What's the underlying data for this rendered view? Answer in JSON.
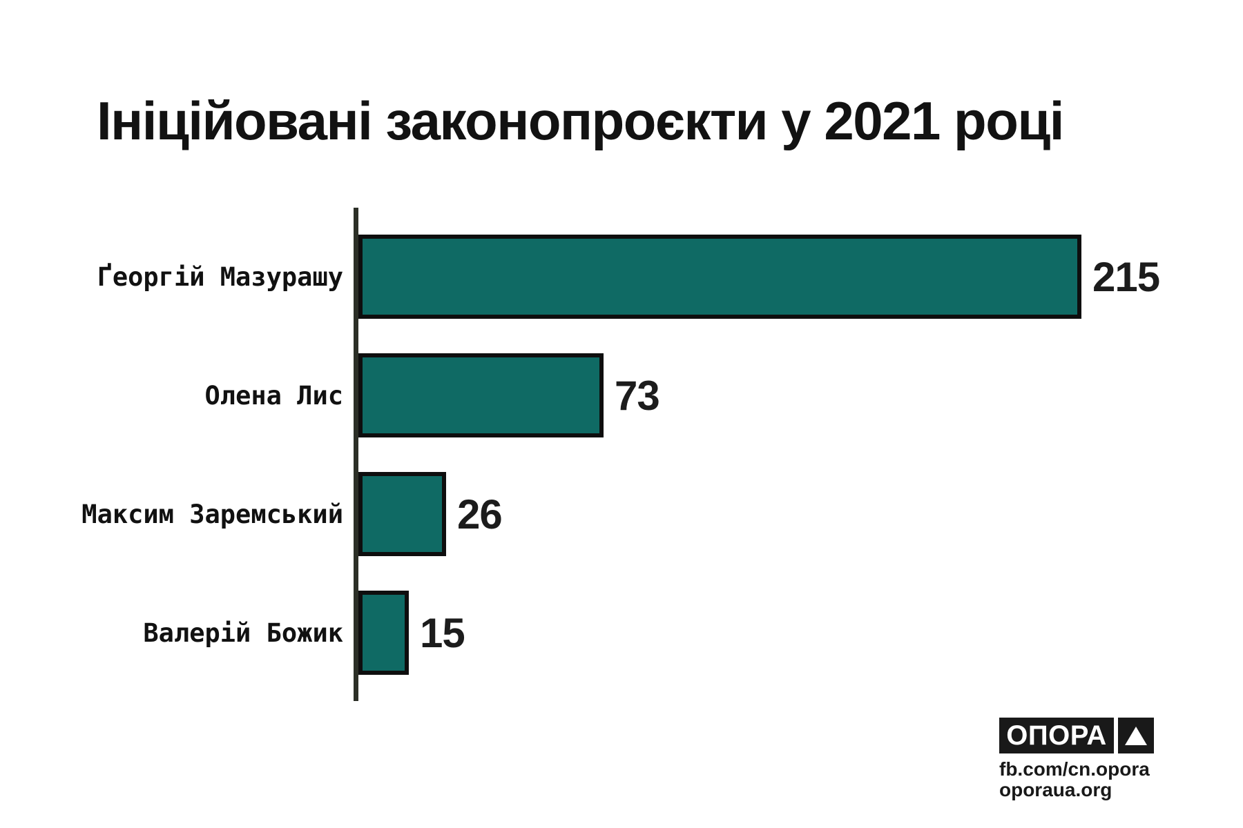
{
  "chart_data": {
    "type": "bar",
    "orientation": "horizontal",
    "title": "Ініційовані законопроєкти у 2021 році",
    "categories": [
      "Ґеоргій Мазурашу",
      "Олена Лис",
      "Максим Заремський",
      "Валерій Божик"
    ],
    "values": [
      215,
      73,
      26,
      15
    ],
    "xlim": [
      0,
      230
    ],
    "grid": false,
    "legend": false,
    "value_labels": true,
    "bar_color": "#0f6a64",
    "bar_border_color": "#0e0e0e",
    "axis_color": "#2c2f27",
    "category_label_color": "#111111",
    "value_label_color": "#1c1c1c",
    "title_color": "#121212"
  },
  "footer": {
    "logo_text": "ОПОРА",
    "logo_triangle_icon": "triangle-up",
    "links": [
      "fb.com/cn.opora",
      "oporaua.org"
    ],
    "logo_bg": "#191919",
    "logo_fg": "#ffffff",
    "links_color": "#191919"
  }
}
